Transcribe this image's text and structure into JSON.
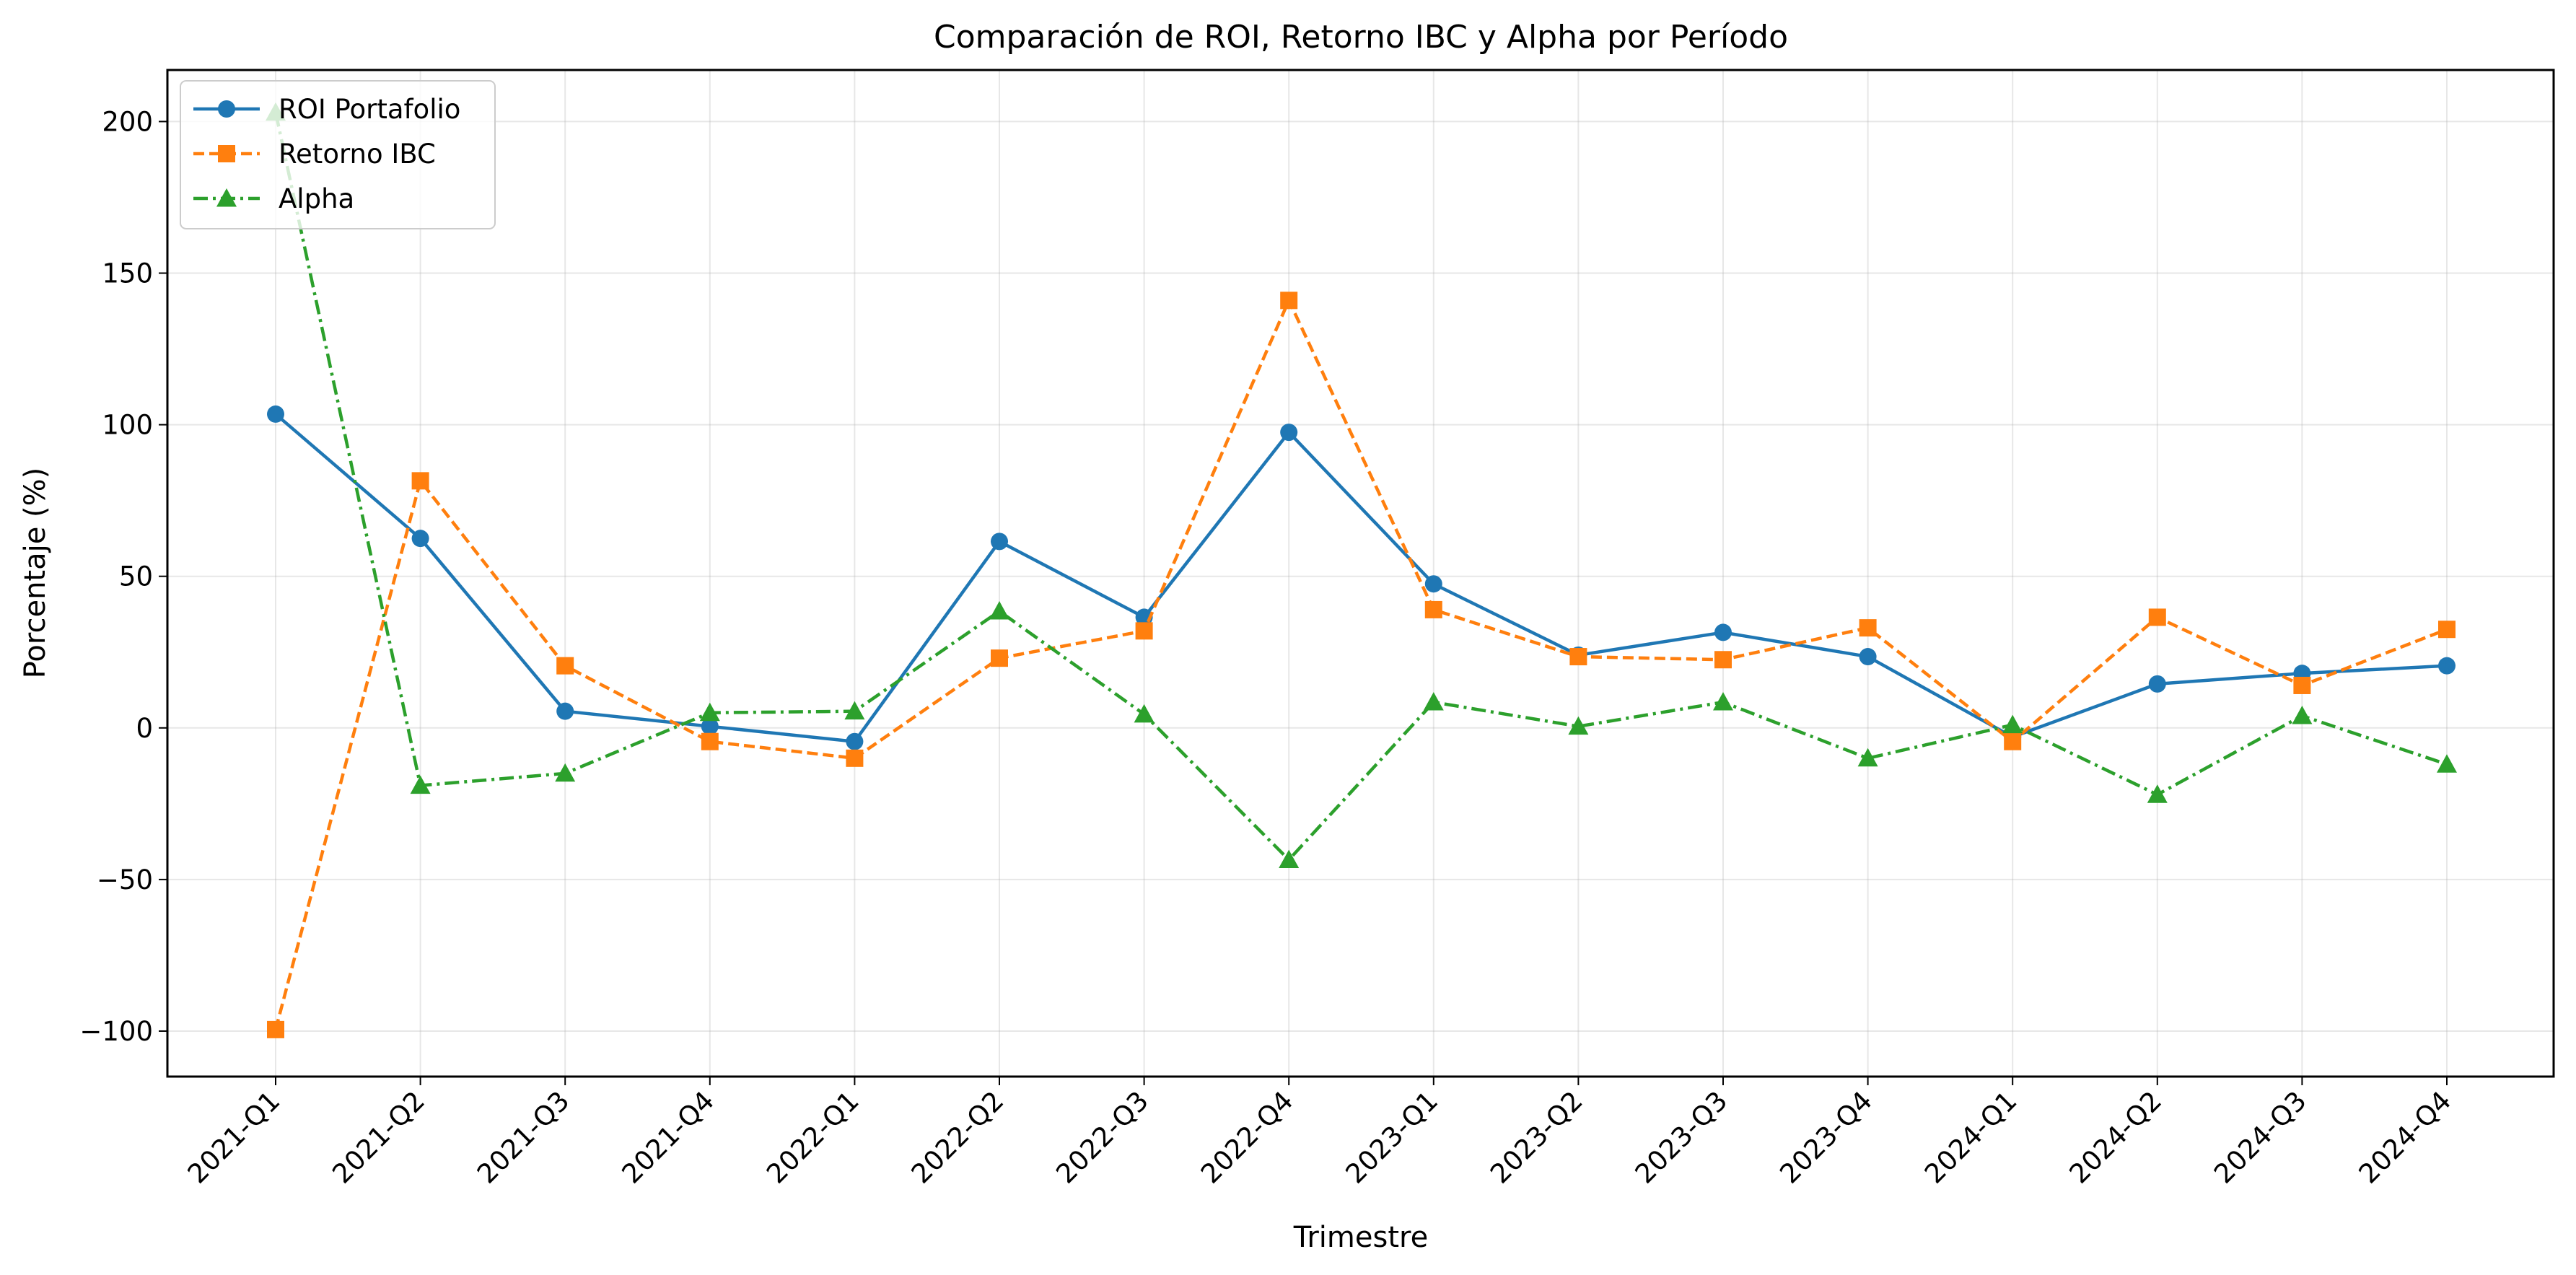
{
  "chart_data": {
    "type": "line",
    "title": "Comparación de ROI, Retorno IBC y Alpha por Período",
    "xlabel": "Trimestre",
    "ylabel": "Porcentaje (%)",
    "categories": [
      "2021-Q1",
      "2021-Q2",
      "2021-Q3",
      "2021-Q4",
      "2022-Q1",
      "2022-Q2",
      "2022-Q3",
      "2022-Q4",
      "2023-Q1",
      "2023-Q2",
      "2023-Q3",
      "2023-Q4",
      "2024-Q1",
      "2024-Q2",
      "2024-Q3",
      "2024-Q4"
    ],
    "ylim": [
      -115,
      217
    ],
    "yticks": [
      -100,
      -50,
      0,
      50,
      100,
      150,
      200
    ],
    "ytick_labels": [
      "−100",
      "−50",
      "0",
      "50",
      "100",
      "150",
      "200"
    ],
    "grid": true,
    "legend_position": "top-left",
    "series": [
      {
        "name": "ROI Portafolio",
        "color": "#1f77b4",
        "marker": "circle",
        "linestyle": "solid",
        "values": [
          103.5,
          62.5,
          5.5,
          0.5,
          -4.5,
          61.5,
          36.5,
          97.5,
          47.5,
          24.0,
          31.5,
          23.5,
          -3.0,
          14.5,
          18.0,
          20.5
        ]
      },
      {
        "name": "Retorno IBC",
        "color": "#ff7f0e",
        "marker": "square",
        "linestyle": "dashed",
        "values": [
          -99.5,
          81.5,
          20.5,
          -4.5,
          -10.0,
          23.0,
          32.0,
          141.0,
          39.0,
          23.5,
          22.5,
          33.0,
          -4.5,
          36.5,
          14.0,
          32.5
        ]
      },
      {
        "name": "Alpha",
        "color": "#2ca02c",
        "marker": "triangle",
        "linestyle": "dashdot",
        "values": [
          203.0,
          -19.0,
          -15.0,
          5.0,
          5.5,
          38.5,
          4.5,
          -43.5,
          8.5,
          0.5,
          8.5,
          -10.0,
          1.0,
          -22.0,
          4.0,
          -12.0
        ]
      }
    ]
  }
}
